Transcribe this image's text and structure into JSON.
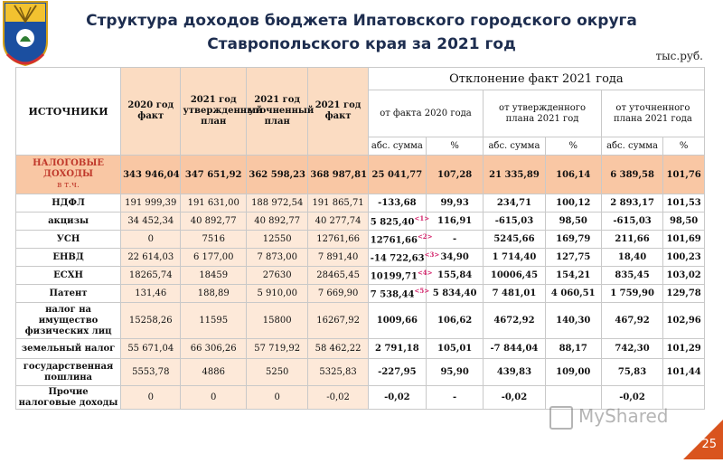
{
  "header": {
    "title_line1": "Структура доходов бюджета Ипатовского городского округа",
    "title_line2": "Ставропольского края за 2021 год",
    "units": "тыс.руб."
  },
  "columns": {
    "sources": "ИСТОЧНИКИ",
    "fact2020": "2020 год факт",
    "plan2021_approved": "2021 год утвержденный план",
    "plan2021_refined": "2021 год уточненный план",
    "fact2021": "2021 год факт",
    "deviation": "Отклонение факт 2021 года",
    "vs_fact2020": "от факта 2020 года",
    "vs_approved": "от утвержденного плана 2021 год",
    "vs_refined": "от уточненного плана 2021 года",
    "abs_sum": "абс. сумма",
    "pct": "%"
  },
  "total": {
    "name_line1": "НАЛОГОВЫЕ",
    "name_line2": "ДОХОДЫ",
    "name_line3": "в т.ч.",
    "values": [
      "343 946,04",
      "347 651,92",
      "362 598,23",
      "368 987,81",
      "25 041,77",
      "107,28",
      "21 335,89",
      "106,14",
      "6 389,58",
      "101,76"
    ]
  },
  "rows": [
    {
      "name": "НДФЛ",
      "values": [
        "191 999,39",
        "191 631,00",
        "188 972,54",
        "191 865,71",
        "-133,68",
        "99,93",
        "234,71",
        "100,12",
        "2 893,17",
        "101,53"
      ],
      "note": ""
    },
    {
      "name": "акцизы",
      "values": [
        "34 452,34",
        "40 892,77",
        "40 892,77",
        "40 277,74",
        "5 825,40",
        "116,91",
        "-615,03",
        "98,50",
        "-615,03",
        "98,50"
      ],
      "note": "<1>"
    },
    {
      "name": "УСН",
      "values": [
        "0",
        "7516",
        "12550",
        "12761,66",
        "12761,66",
        "-",
        "5245,66",
        "169,79",
        "211,66",
        "101,69"
      ],
      "note": "<2>"
    },
    {
      "name": "ЕНВД",
      "values": [
        "22 614,03",
        "6 177,00",
        "7 873,00",
        "7 891,40",
        "-14 722,63",
        "34,90",
        "1 714,40",
        "127,75",
        "18,40",
        "100,23"
      ],
      "note": "<3>"
    },
    {
      "name": "ЕСХН",
      "values": [
        "18265,74",
        "18459",
        "27630",
        "28465,45",
        "10199,71",
        "155,84",
        "10006,45",
        "154,21",
        "835,45",
        "103,02"
      ],
      "note": "<4>"
    },
    {
      "name": "Патент",
      "values": [
        "131,46",
        "188,89",
        "5 910,00",
        "7 669,90",
        "7 538,44",
        "5 834,40",
        "7 481,01",
        "4 060,51",
        "1 759,90",
        "129,78"
      ],
      "note": "<5>"
    },
    {
      "name": "налог на имущество физических лиц",
      "values": [
        "15258,26",
        "11595",
        "15800",
        "16267,92",
        "1009,66",
        "106,62",
        "4672,92",
        "140,30",
        "467,92",
        "102,96"
      ],
      "note": ""
    },
    {
      "name": "земельный налог",
      "values": [
        "55 671,04",
        "66 306,26",
        "57 719,92",
        "58 462,22",
        "2 791,18",
        "105,01",
        "-7 844,04",
        "88,17",
        "742,30",
        "101,29"
      ],
      "note": ""
    },
    {
      "name": "государственная пошлина",
      "values": [
        "5553,78",
        "4886",
        "5250",
        "5325,83",
        "-227,95",
        "95,90",
        "439,83",
        "109,00",
        "75,83",
        "101,44"
      ],
      "note": ""
    },
    {
      "name": "Прочие налоговые доходы",
      "values": [
        "0",
        "0",
        "0",
        "-0,02",
        "-0,02",
        "-",
        "-0,02",
        "",
        "-0,02",
        ""
      ],
      "note": ""
    }
  ],
  "watermark": "MyShared",
  "page_number": "25",
  "colors": {
    "title": "#1d2d4f",
    "total_row": "#f9c7a4",
    "plan_cols": "#fde9d9",
    "accent": "#c0392b",
    "page_badge": "#d9541e"
  }
}
